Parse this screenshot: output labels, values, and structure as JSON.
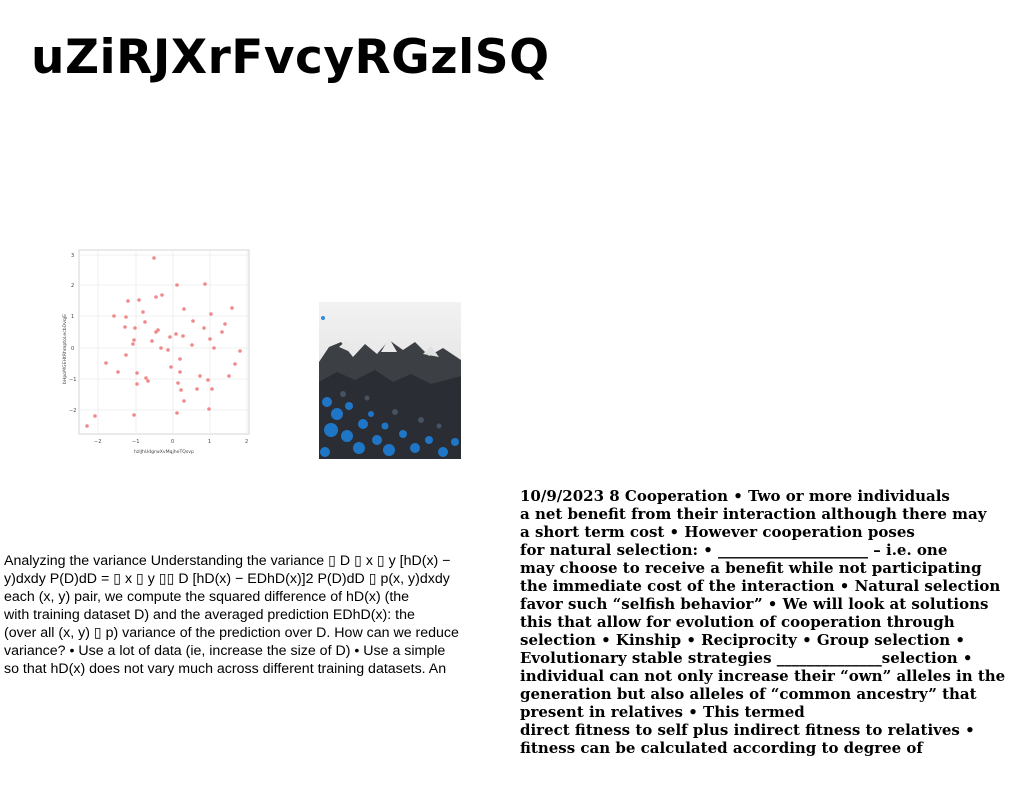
{
  "page": {
    "title": "uZiRJXrFvcyRGzlSQ"
  },
  "scatter_image": {
    "icon": "scatter-plot-thumbnail",
    "point_color": "#f08080",
    "xlabel": "hzlJhUdgrwXvMqjheTQsvp",
    "ylabel": "bHpoMGEHtRhmptoLecbDvqjE",
    "x_ticks": [
      "−2",
      "−1",
      "0",
      "1",
      "2"
    ],
    "y_ticks": [
      "3",
      "2",
      "1",
      "0",
      "−1",
      "−2"
    ]
  },
  "photo_image": {
    "icon": "landscape-photo",
    "accent": "#1e7fd6"
  },
  "left_paragraph": {
    "lines": [
      "Analyzing the variance Understanding the variance ▯ D ▯ x ▯ y [hD(x) −",
      "y)dxdy P(D)dD = ▯ x ▯ y ▯▯ D [hD(x) − EDhD(x)]2 P(D)dD ▯ p(x, y)dxdy",
      "each (x, y) pair, we compute the squared difference of hD(x) (the",
      "with training dataset D) and the averaged prediction EDhD(x): the",
      "(over all (x, y) ▯ p) variance of the prediction over D. How can we reduce",
      "variance? • Use a lot of data (ie, increase the size of D) • Use a simple",
      "so that hD(x) does not vary much across different training datasets. An"
    ]
  },
  "right_paragraph": {
    "lines": [
      "10/9/2023 8 Cooperation • Two or more individuals",
      "a net benefit from their interaction although there may",
      "a short term cost • However cooperation poses",
      "for natural selection: • ____________________ – i.e. one",
      "may choose to receive a benefit while not participating",
      "the immediate cost of the interaction • Natural selection",
      "favor such “selfish behavior” • We will look at solutions",
      "this that allow for evolution of cooperation through",
      "selection • Kinship • Reciprocity • Group selection •",
      "Evolutionary stable strategies ______________selection •",
      "individual can not only increase their “own” alleles in the",
      "generation but also alleles of “common ancestry” that",
      "present in relatives • This termed",
      "direct fitness to self plus indirect fitness to relatives •",
      "fitness can be calculated according to degree of"
    ]
  }
}
